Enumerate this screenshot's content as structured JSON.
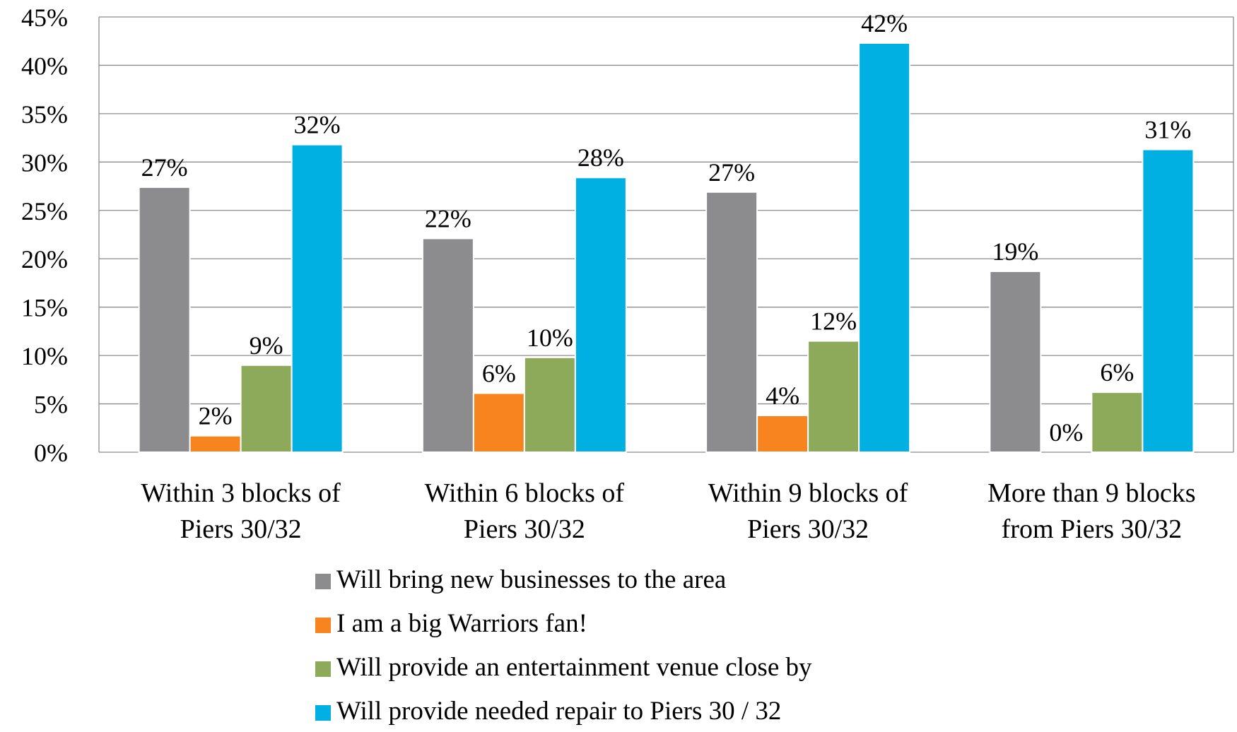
{
  "chart_data": {
    "type": "bar",
    "categories": [
      [
        "Within 3 blocks of",
        "Piers 30/32"
      ],
      [
        "Within 6 blocks of",
        "Piers 30/32"
      ],
      [
        "Within 9 blocks of",
        "Piers 30/32"
      ],
      [
        "More than 9 blocks",
        "from Piers 30/32"
      ]
    ],
    "series": [
      {
        "name": "Will bring new businesses to the area",
        "color": "#8c8c8e",
        "values": [
          27.4,
          22.1,
          26.9,
          18.7
        ],
        "labels": [
          "27%",
          "22%",
          "27%",
          "19%"
        ]
      },
      {
        "name": "I am a big Warriors fan!",
        "color": "#f7841f",
        "values": [
          1.7,
          6.1,
          3.8,
          0
        ],
        "labels": [
          "2%",
          "6%",
          "4%",
          "0%"
        ]
      },
      {
        "name": "Will provide an entertainment venue close by",
        "color": "#8caa5a",
        "values": [
          9.0,
          9.8,
          11.5,
          6.2
        ],
        "labels": [
          "9%",
          "10%",
          "12%",
          "6%"
        ]
      },
      {
        "name": "Will provide needed repair to Piers 30 / 32",
        "color": "#00b0e2",
        "values": [
          31.8,
          28.4,
          42.3,
          31.3
        ],
        "labels": [
          "32%",
          "28%",
          "42%",
          "31%"
        ]
      }
    ],
    "y_ticks": [
      "0%",
      "5%",
      "10%",
      "15%",
      "20%",
      "25%",
      "30%",
      "35%",
      "40%",
      "45%"
    ],
    "ylim": [
      0,
      45
    ],
    "grid": true,
    "legend_position": "bottom",
    "title": "",
    "xlabel": "",
    "ylabel": ""
  }
}
